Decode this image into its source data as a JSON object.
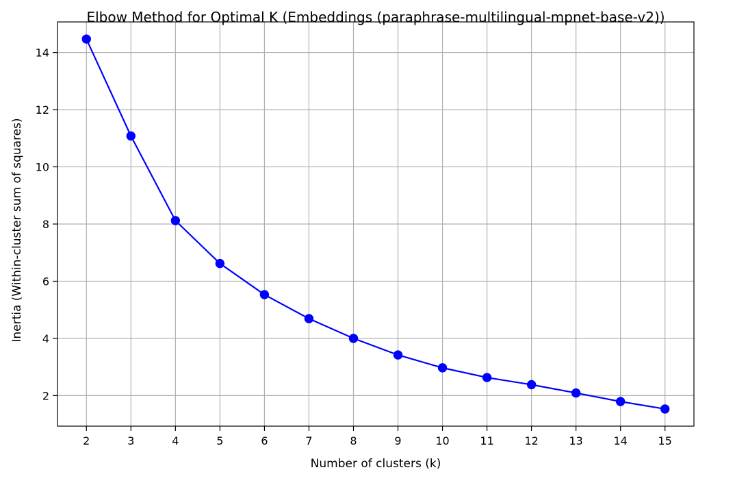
{
  "chart_data": {
    "type": "line",
    "title": "Elbow Method for Optimal K (Embeddings (paraphrase-multilingual-mpnet-base-v2))",
    "xlabel": "Number of clusters (k)",
    "ylabel": "Inertia (Within-cluster sum of squares)",
    "x": [
      2,
      3,
      4,
      5,
      6,
      7,
      8,
      9,
      10,
      11,
      12,
      13,
      14,
      15
    ],
    "series": [
      {
        "values": [
          14.47,
          11.08,
          8.12,
          6.62,
          5.53,
          4.69,
          4.0,
          3.42,
          2.97,
          2.63,
          2.38,
          2.09,
          1.79,
          1.53
        ],
        "color": "#0000ff",
        "marker": "circle"
      }
    ],
    "xticks": [
      2,
      3,
      4,
      5,
      6,
      7,
      8,
      9,
      10,
      11,
      12,
      13,
      14,
      15
    ],
    "yticks": [
      2,
      4,
      6,
      8,
      10,
      12,
      14
    ],
    "xlim": [
      1.35,
      15.65
    ],
    "ylim": [
      0.93,
      15.07
    ],
    "grid": true,
    "legend": "none"
  }
}
